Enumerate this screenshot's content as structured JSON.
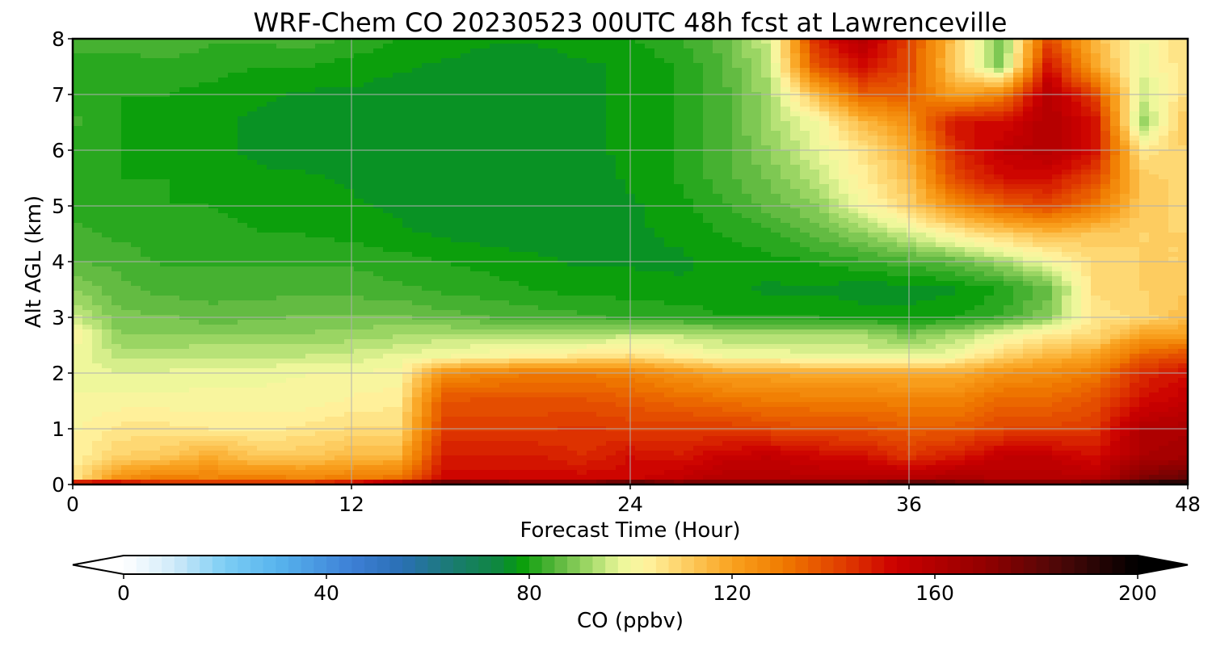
{
  "chart_data": {
    "type": "heatmap",
    "title": "WRF-Chem CO  20230523 00UTC 48h fcst at Lawrenceville",
    "xlabel": "Forecast Time (Hour)",
    "ylabel": "Alt AGL (km)",
    "xlim": [
      0,
      48
    ],
    "ylim": [
      0,
      8
    ],
    "x_ticks": [
      "0",
      "12",
      "24",
      "36",
      "48"
    ],
    "y_ticks": [
      "0",
      "1",
      "2",
      "3",
      "4",
      "5",
      "6",
      "7",
      "8"
    ],
    "grid": true,
    "x_hours": [
      0,
      2,
      4,
      6,
      8,
      10,
      12,
      14,
      16,
      18,
      20,
      22,
      24,
      26,
      28,
      30,
      32,
      34,
      36,
      38,
      40,
      42,
      44,
      46,
      48
    ],
    "altitudes_km": [
      0,
      0.1,
      0.5,
      1,
      1.5,
      2,
      2.3,
      2.7,
      3,
      3.5,
      4,
      4.5,
      5,
      5.5,
      6,
      6.5,
      7,
      7.5,
      8
    ],
    "values_ppbv": [
      [
        180,
        165,
        150,
        150,
        150,
        150,
        160,
        180,
        195,
        190,
        185,
        185,
        200,
        185,
        185,
        185,
        185,
        185,
        195,
        185,
        180,
        180,
        185,
        200,
        200
      ],
      [
        105,
        125,
        130,
        128,
        130,
        128,
        130,
        132,
        152,
        152,
        152,
        152,
        152,
        155,
        160,
        160,
        158,
        160,
        160,
        162,
        160,
        160,
        158,
        175,
        180
      ],
      [
        103,
        110,
        112,
        118,
        112,
        112,
        115,
        116,
        148,
        148,
        148,
        145,
        150,
        148,
        153,
        155,
        152,
        150,
        143,
        148,
        155,
        155,
        150,
        162,
        165
      ],
      [
        102,
        106,
        106,
        105,
        104,
        106,
        108,
        108,
        142,
        142,
        142,
        143,
        142,
        142,
        142,
        140,
        138,
        138,
        136,
        136,
        140,
        140,
        143,
        160,
        162
      ],
      [
        101,
        101,
        101,
        101,
        101,
        101,
        103,
        104,
        138,
        138,
        138,
        138,
        136,
        134,
        132,
        130,
        130,
        130,
        128,
        128,
        134,
        134,
        138,
        150,
        155
      ],
      [
        98,
        98,
        98,
        99,
        99,
        100,
        100,
        101,
        125,
        128,
        130,
        130,
        128,
        124,
        120,
        120,
        118,
        118,
        118,
        118,
        124,
        126,
        130,
        145,
        150
      ],
      [
        100,
        94,
        94,
        95,
        95,
        95,
        96,
        98,
        100,
        102,
        104,
        106,
        108,
        104,
        100,
        100,
        98,
        98,
        98,
        100,
        110,
        116,
        120,
        135,
        140
      ],
      [
        102,
        90,
        90,
        90,
        90,
        90,
        91,
        92,
        93,
        93,
        93,
        92,
        94,
        94,
        92,
        92,
        92,
        92,
        88,
        92,
        98,
        104,
        108,
        120,
        120
      ],
      [
        96,
        88,
        88,
        86,
        87,
        88,
        88,
        88,
        86,
        85,
        84,
        83,
        82,
        82,
        80,
        80,
        80,
        79,
        79,
        80,
        83,
        90,
        106,
        108,
        115
      ],
      [
        90,
        86,
        84,
        84,
        84,
        84,
        84,
        83,
        82,
        81,
        80,
        79,
        79,
        78,
        78,
        77,
        77,
        76,
        76,
        77,
        80,
        86,
        108,
        110,
        112
      ],
      [
        85,
        84,
        82,
        82,
        82,
        82,
        82,
        81,
        80,
        79,
        78,
        77,
        77,
        77,
        78,
        79,
        80,
        82,
        84,
        86,
        92,
        100,
        108,
        110,
        110
      ],
      [
        83,
        82,
        81,
        81,
        80,
        80,
        79,
        78,
        77,
        76,
        76,
        76,
        77,
        78,
        80,
        82,
        86,
        90,
        96,
        104,
        110,
        115,
        112,
        110,
        110
      ],
      [
        82,
        81,
        80,
        80,
        79,
        79,
        78,
        77,
        76,
        76,
        76,
        76,
        77,
        79,
        82,
        86,
        90,
        100,
        110,
        125,
        135,
        140,
        130,
        112,
        108
      ],
      [
        82,
        80,
        80,
        79,
        78,
        78,
        77,
        76,
        76,
        76,
        76,
        76,
        78,
        80,
        84,
        88,
        94,
        104,
        114,
        140,
        150,
        150,
        140,
        112,
        108
      ],
      [
        82,
        80,
        79,
        78,
        77,
        76,
        76,
        76,
        76,
        76,
        76,
        77,
        78,
        80,
        84,
        90,
        98,
        106,
        118,
        145,
        155,
        160,
        150,
        105,
        110
      ],
      [
        83,
        80,
        79,
        78,
        77,
        76,
        76,
        76,
        76,
        76,
        76,
        77,
        78,
        80,
        84,
        92,
        100,
        115,
        125,
        150,
        150,
        160,
        150,
        90,
        115
      ],
      [
        82,
        80,
        80,
        79,
        78,
        77,
        77,
        76,
        76,
        76,
        76,
        77,
        78,
        80,
        84,
        92,
        115,
        135,
        135,
        120,
        128,
        160,
        140,
        95,
        108
      ],
      [
        82,
        81,
        82,
        81,
        80,
        80,
        79,
        78,
        77,
        76,
        76,
        77,
        78,
        80,
        85,
        94,
        138,
        150,
        140,
        110,
        88,
        150,
        120,
        98,
        108
      ],
      [
        83,
        84,
        84,
        83,
        83,
        84,
        82,
        80,
        79,
        78,
        78,
        79,
        80,
        82,
        86,
        96,
        145,
        160,
        140,
        112,
        86,
        140,
        115,
        100,
        108
      ]
    ],
    "colorbar": {
      "label": "CO  (ppbv)",
      "ticks": [
        "0",
        "40",
        "80",
        "120",
        "160",
        "200"
      ],
      "range": [
        0,
        200
      ],
      "step": 2.5,
      "extend": "both",
      "stops": [
        {
          "v": 0,
          "c": "#ffffff"
        },
        {
          "v": 10,
          "c": "#cfeaf9"
        },
        {
          "v": 20,
          "c": "#7ccdf4"
        },
        {
          "v": 30,
          "c": "#58b5ee"
        },
        {
          "v": 45,
          "c": "#3d7fd6"
        },
        {
          "v": 55,
          "c": "#2a6fb4"
        },
        {
          "v": 65,
          "c": "#1a7b70"
        },
        {
          "v": 75,
          "c": "#0d8a38"
        },
        {
          "v": 78,
          "c": "#039c07"
        },
        {
          "v": 85,
          "c": "#55b53a"
        },
        {
          "v": 92,
          "c": "#a2d968"
        },
        {
          "v": 98,
          "c": "#ebf79a"
        },
        {
          "v": 103,
          "c": "#fff4a0"
        },
        {
          "v": 112,
          "c": "#fdc85a"
        },
        {
          "v": 120,
          "c": "#f9a21f"
        },
        {
          "v": 130,
          "c": "#f07b00"
        },
        {
          "v": 142,
          "c": "#e03c00"
        },
        {
          "v": 152,
          "c": "#cc0000"
        },
        {
          "v": 170,
          "c": "#920000"
        },
        {
          "v": 185,
          "c": "#4a0808"
        },
        {
          "v": 200,
          "c": "#000000"
        }
      ],
      "under_color": "#ffffff",
      "over_color": "#000000"
    }
  }
}
